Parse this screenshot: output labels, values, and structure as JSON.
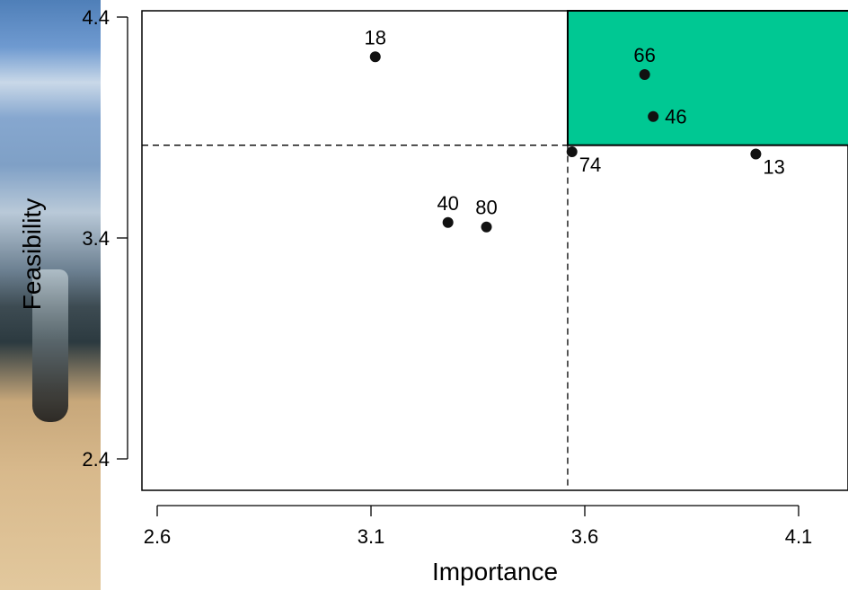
{
  "chart_data": {
    "type": "scatter",
    "title": "",
    "xlabel": "Importance",
    "ylabel": "Feasibility",
    "xlim": [
      2.57,
      4.16
    ],
    "ylim": [
      2.29,
      4.41
    ],
    "xticks": [
      2.6,
      3.1,
      3.6,
      4.1
    ],
    "xtick_labels": [
      "2.6",
      "3.1",
      "3.6",
      "4.1"
    ],
    "yticks": [
      2.4,
      3.4,
      4.4
    ],
    "ytick_labels": [
      "2.4",
      "3.4",
      "4.4"
    ],
    "grid": false,
    "threshold_lines": {
      "x": 3.56,
      "y": 3.82
    },
    "highlight_quadrant": {
      "x_from": 3.56,
      "y_from": 3.82,
      "color": "#00c893"
    },
    "points": [
      {
        "label": "18",
        "x": 3.11,
        "y": 4.22,
        "label_pos": "above"
      },
      {
        "label": "66",
        "x": 3.74,
        "y": 4.14,
        "label_pos": "above"
      },
      {
        "label": "46",
        "x": 3.76,
        "y": 3.95,
        "label_pos": "right"
      },
      {
        "label": "74",
        "x": 3.57,
        "y": 3.79,
        "label_pos": "below-right"
      },
      {
        "label": "13",
        "x": 4.0,
        "y": 3.78,
        "label_pos": "below-right"
      },
      {
        "label": "40",
        "x": 3.28,
        "y": 3.47,
        "label_pos": "above"
      },
      {
        "label": "80",
        "x": 3.37,
        "y": 3.45,
        "label_pos": "above"
      }
    ]
  }
}
